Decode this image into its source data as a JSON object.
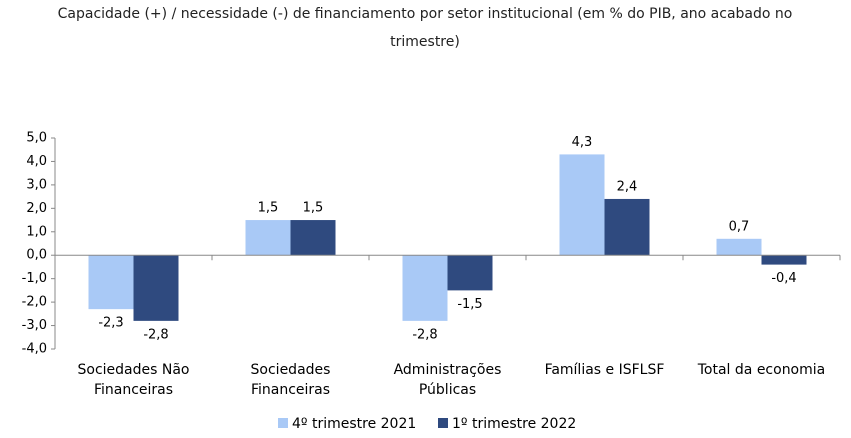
{
  "chart_data": {
    "type": "bar",
    "title": "Capacidade (+) / necessidade (-) de financiamento por setor institucional (em % do PIB, ano acabado no trimestre)",
    "categories": [
      "Sociedades Não Financeiras",
      "Sociedades Financeiras",
      "Administrações Públicas",
      "Famílias e ISFLSF",
      "Total da economia"
    ],
    "series": [
      {
        "name": "4º trimestre 2021",
        "color": "#a9c9f6",
        "values": [
          -2.3,
          1.5,
          -2.8,
          4.3,
          0.7
        ],
        "value_labels": [
          "-2,3",
          "1,5",
          "-2,8",
          "4,3",
          "0,7"
        ]
      },
      {
        "name": "1º trimestre 2022",
        "color": "#2f4a7f",
        "values": [
          -2.8,
          1.5,
          -1.5,
          2.4,
          -0.4
        ],
        "value_labels": [
          "-2,8",
          "1,5",
          "-1,5",
          "2,4",
          "-0,4"
        ]
      }
    ],
    "ylim": [
      -4,
      5
    ],
    "yticks": [
      {
        "value": -4,
        "label": "-4,0"
      },
      {
        "value": -3,
        "label": "-3,0"
      },
      {
        "value": -2,
        "label": "-2,0"
      },
      {
        "value": -1,
        "label": "-1,0"
      },
      {
        "value": 0,
        "label": "0,0"
      },
      {
        "value": 1,
        "label": "1,0"
      },
      {
        "value": 2,
        "label": "2,0"
      },
      {
        "value": 3,
        "label": "3,0"
      },
      {
        "value": 4,
        "label": "4,0"
      },
      {
        "value": 5,
        "label": "5,0"
      }
    ],
    "grid": false,
    "legend": "bottom"
  }
}
